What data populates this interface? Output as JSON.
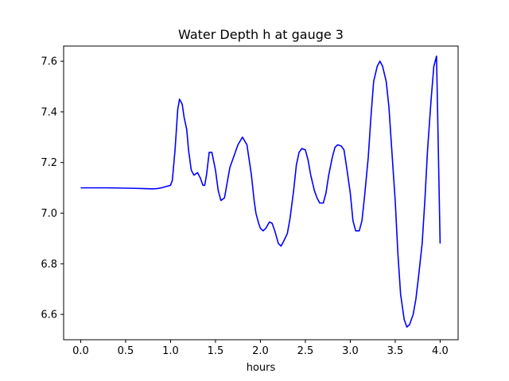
{
  "chart_data": {
    "type": "line",
    "title": "Water Depth h at gauge 3",
    "xlabel": "hours",
    "ylabel": "",
    "xlim": [
      -0.19,
      4.2
    ],
    "ylim": [
      6.5,
      7.66
    ],
    "grid": false,
    "xticks": [
      0.0,
      0.5,
      1.0,
      1.5,
      2.0,
      2.5,
      3.0,
      3.5,
      4.0
    ],
    "xtick_labels": [
      "0.0",
      "0.5",
      "1.0",
      "1.5",
      "2.0",
      "2.5",
      "3.0",
      "3.5",
      "4.0"
    ],
    "yticks": [
      6.6,
      6.8,
      7.0,
      7.2,
      7.4,
      7.6
    ],
    "ytick_labels": [
      "6.6",
      "6.8",
      "7.0",
      "7.2",
      "7.4",
      "7.6"
    ],
    "series": [
      {
        "color": "#0000ff",
        "x": [
          0.0,
          0.3,
          0.6,
          0.7,
          0.8,
          0.85,
          0.9,
          0.95,
          1.0,
          1.02,
          1.05,
          1.08,
          1.1,
          1.13,
          1.15,
          1.18,
          1.2,
          1.23,
          1.26,
          1.3,
          1.33,
          1.36,
          1.38,
          1.4,
          1.43,
          1.46,
          1.5,
          1.53,
          1.56,
          1.6,
          1.63,
          1.66,
          1.7,
          1.75,
          1.8,
          1.85,
          1.9,
          1.93,
          1.95,
          1.98,
          2.0,
          2.03,
          2.06,
          2.1,
          2.13,
          2.16,
          2.2,
          2.23,
          2.26,
          2.3,
          2.33,
          2.37,
          2.4,
          2.43,
          2.46,
          2.5,
          2.53,
          2.56,
          2.6,
          2.63,
          2.66,
          2.7,
          2.73,
          2.76,
          2.8,
          2.83,
          2.86,
          2.9,
          2.93,
          2.96,
          3.0,
          3.03,
          3.06,
          3.1,
          3.13,
          3.16,
          3.2,
          3.23,
          3.26,
          3.3,
          3.33,
          3.36,
          3.4,
          3.43,
          3.46,
          3.5,
          3.53,
          3.56,
          3.6,
          3.63,
          3.66,
          3.7,
          3.73,
          3.76,
          3.8,
          3.83,
          3.86,
          3.9,
          3.93,
          3.96,
          4.0
        ],
        "y": [
          7.1,
          7.1,
          7.098,
          7.097,
          7.096,
          7.097,
          7.1,
          7.105,
          7.11,
          7.13,
          7.25,
          7.41,
          7.45,
          7.43,
          7.38,
          7.33,
          7.25,
          7.17,
          7.15,
          7.16,
          7.14,
          7.11,
          7.11,
          7.15,
          7.24,
          7.24,
          7.17,
          7.09,
          7.05,
          7.06,
          7.12,
          7.18,
          7.22,
          7.27,
          7.3,
          7.27,
          7.15,
          7.05,
          7.0,
          6.96,
          6.94,
          6.93,
          6.94,
          6.965,
          6.96,
          6.93,
          6.88,
          6.87,
          6.89,
          6.92,
          6.98,
          7.09,
          7.19,
          7.24,
          7.255,
          7.25,
          7.21,
          7.15,
          7.09,
          7.06,
          7.04,
          7.04,
          7.08,
          7.15,
          7.22,
          7.26,
          7.27,
          7.265,
          7.25,
          7.18,
          7.08,
          6.97,
          6.93,
          6.93,
          6.97,
          7.07,
          7.22,
          7.38,
          7.52,
          7.58,
          7.6,
          7.58,
          7.52,
          7.42,
          7.26,
          7.05,
          6.84,
          6.68,
          6.58,
          6.55,
          6.56,
          6.6,
          6.66,
          6.75,
          6.88,
          7.05,
          7.25,
          7.45,
          7.58,
          7.62,
          6.88
        ]
      }
    ]
  }
}
